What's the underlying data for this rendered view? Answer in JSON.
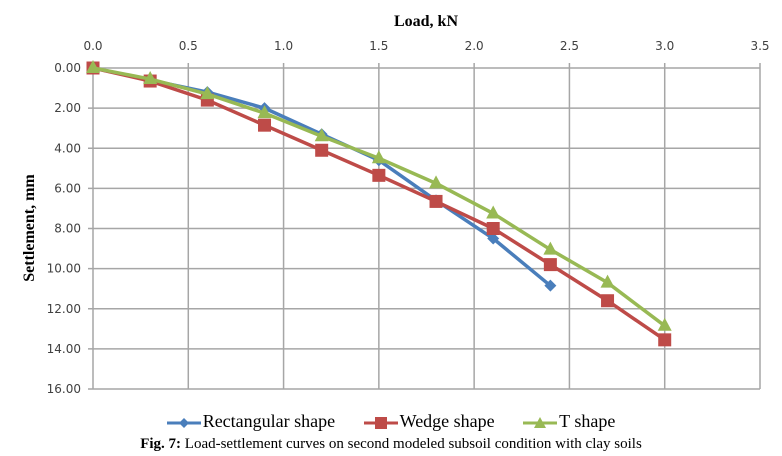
{
  "chart_data": {
    "type": "line",
    "xlabel": "Load, kN",
    "ylabel": "Settlement, mm",
    "xlim": [
      0,
      3.5
    ],
    "ylim": [
      0,
      16
    ],
    "y_inverted": true,
    "x_axis_position": "top",
    "grid": true,
    "legend_position": "bottom",
    "x_ticks": [
      "0.0",
      "0.5",
      "1.0",
      "1.5",
      "2.0",
      "2.5",
      "3.0",
      "3.5"
    ],
    "y_ticks": [
      "0.00",
      "2.00",
      "4.00",
      "6.00",
      "8.00",
      "10.00",
      "12.00",
      "14.00",
      "16.00"
    ],
    "series": [
      {
        "name": "Rectangular shape",
        "color": "#4a7ebb",
        "marker": "diamond",
        "x": [
          0,
          0.3,
          0.6,
          0.9,
          1.2,
          1.5,
          1.8,
          2.1,
          2.4
        ],
        "y": [
          0,
          0.6,
          1.2,
          2.0,
          3.3,
          4.6,
          6.6,
          8.5,
          10.85
        ]
      },
      {
        "name": "Wedge shape",
        "color": "#be4b48",
        "marker": "square",
        "x": [
          0,
          0.3,
          0.6,
          0.9,
          1.2,
          1.5,
          1.8,
          2.1,
          2.4,
          2.7,
          3.0
        ],
        "y": [
          0,
          0.65,
          1.6,
          2.85,
          4.1,
          5.35,
          6.65,
          8.0,
          9.8,
          11.6,
          13.55
        ]
      },
      {
        "name": "T shape",
        "color": "#98b954",
        "marker": "triangle",
        "x": [
          0,
          0.3,
          0.6,
          0.9,
          1.2,
          1.5,
          1.8,
          2.1,
          2.4,
          2.7,
          3.0
        ],
        "y": [
          0,
          0.55,
          1.3,
          2.25,
          3.4,
          4.5,
          5.75,
          7.25,
          9.05,
          10.7,
          12.85
        ]
      }
    ]
  },
  "caption": {
    "label": "Fig. 7:",
    "text": " Load-settlement curves on second modeled subsoil condition with clay soils"
  }
}
